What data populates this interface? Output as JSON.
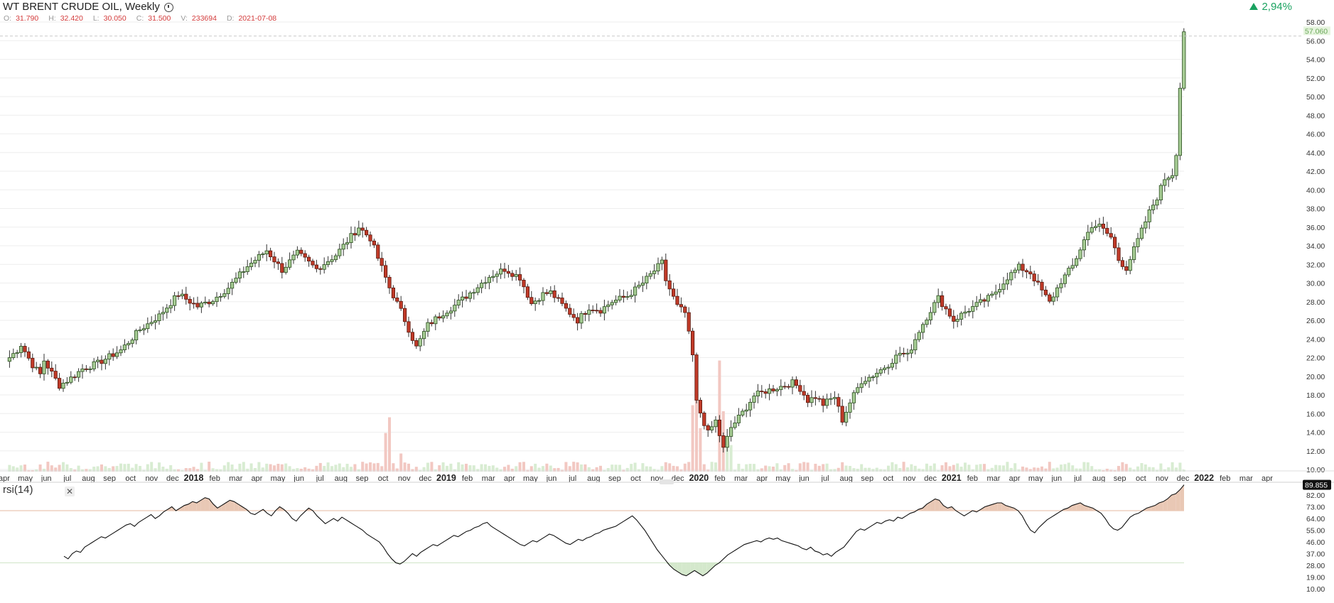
{
  "header": {
    "title": "WT BRENT CRUDE OIL, Weekly",
    "ohlc": [
      {
        "key": "O:",
        "value": "31.790"
      },
      {
        "key": "H:",
        "value": "32.420"
      },
      {
        "key": "L:",
        "value": "30.050"
      },
      {
        "key": "C:",
        "value": "31.500"
      },
      {
        "key": "V:",
        "value": "233694"
      },
      {
        "key": "D:",
        "value": "2021-07-08"
      }
    ],
    "change": "2,94%"
  },
  "colors": {
    "up": "#a6cc94",
    "up_border": "#2b4d1f",
    "down": "#c03a28",
    "down_border": "#5a1a10",
    "vol_up": "#d8ecd2",
    "vol_down": "#f2c8c2",
    "grid": "#eeeeee",
    "axis_text": "#333333",
    "change": "#1aa260"
  },
  "chart_data": [
    {
      "type": "candlestick",
      "title": "WT BRENT CRUDE OIL, Weekly",
      "ylim": [
        9.0,
        58.6
      ],
      "y_ticks": [
        "10.00",
        "12.00",
        "14.00",
        "16.00",
        "18.00",
        "20.00",
        "22.00",
        "24.00",
        "26.00",
        "28.00",
        "30.00",
        "32.00",
        "34.00",
        "36.00",
        "38.00",
        "40.00",
        "42.00",
        "44.00",
        "46.00",
        "48.00",
        "50.00",
        "52.00",
        "54.00",
        "56.00",
        "58.00"
      ],
      "last_price_label": "57.060",
      "x_labels": [
        {
          "t": "apr"
        },
        {
          "t": "may"
        },
        {
          "t": "jun"
        },
        {
          "t": "jul"
        },
        {
          "t": "aug"
        },
        {
          "t": "sep"
        },
        {
          "t": "oct"
        },
        {
          "t": "nov"
        },
        {
          "t": "dec"
        },
        {
          "t": "2018",
          "bold": true
        },
        {
          "t": "feb"
        },
        {
          "t": "mar"
        },
        {
          "t": "apr"
        },
        {
          "t": "may"
        },
        {
          "t": "jun"
        },
        {
          "t": "jul"
        },
        {
          "t": "aug"
        },
        {
          "t": "sep"
        },
        {
          "t": "oct"
        },
        {
          "t": "nov"
        },
        {
          "t": "dec"
        },
        {
          "t": "2019",
          "bold": true
        },
        {
          "t": "feb"
        },
        {
          "t": "mar"
        },
        {
          "t": "apr"
        },
        {
          "t": "may"
        },
        {
          "t": "jun"
        },
        {
          "t": "jul"
        },
        {
          "t": "aug"
        },
        {
          "t": "sep"
        },
        {
          "t": "oct"
        },
        {
          "t": "nov"
        },
        {
          "t": "dec"
        },
        {
          "t": "2020",
          "bold": true
        },
        {
          "t": "feb"
        },
        {
          "t": "mar"
        },
        {
          "t": "apr"
        },
        {
          "t": "may"
        },
        {
          "t": "jun"
        },
        {
          "t": "jul"
        },
        {
          "t": "aug"
        },
        {
          "t": "sep"
        },
        {
          "t": "oct"
        },
        {
          "t": "nov"
        },
        {
          "t": "dec"
        },
        {
          "t": "2021",
          "bold": true
        },
        {
          "t": "feb"
        },
        {
          "t": "mar"
        },
        {
          "t": "apr"
        },
        {
          "t": "may"
        },
        {
          "t": "jun"
        },
        {
          "t": "jul"
        },
        {
          "t": "aug"
        },
        {
          "t": "sep"
        },
        {
          "t": "oct"
        },
        {
          "t": "nov"
        },
        {
          "t": "dec"
        },
        {
          "t": "2022",
          "bold": true
        },
        {
          "t": "feb"
        },
        {
          "t": "mar"
        },
        {
          "t": "apr"
        }
      ],
      "close_anchors": [
        [
          0,
          21.6
        ],
        [
          3,
          22.8
        ],
        [
          4,
          23.4
        ],
        [
          7,
          21.2
        ],
        [
          9,
          20.2
        ],
        [
          10,
          21.7
        ],
        [
          14,
          19.0
        ],
        [
          17,
          19.8
        ],
        [
          20,
          20.8
        ],
        [
          24,
          21.4
        ],
        [
          30,
          22.8
        ],
        [
          35,
          25.0
        ],
        [
          40,
          26.5
        ],
        [
          45,
          28.8
        ],
        [
          50,
          27.5
        ],
        [
          54,
          28.2
        ],
        [
          58,
          29.5
        ],
        [
          63,
          31.8
        ],
        [
          68,
          33.5
        ],
        [
          72,
          31.4
        ],
        [
          76,
          33.2
        ],
        [
          81,
          31.5
        ],
        [
          86,
          33.0
        ],
        [
          92,
          36.0
        ],
        [
          95,
          34.8
        ],
        [
          100,
          29.5
        ],
        [
          103,
          27.0
        ],
        [
          107,
          23.1
        ],
        [
          110,
          25.5
        ],
        [
          114,
          26.8
        ],
        [
          117,
          27.6
        ],
        [
          120,
          28.6
        ],
        [
          126,
          30.7
        ],
        [
          130,
          31.5
        ],
        [
          134,
          30.6
        ],
        [
          137,
          27.8
        ],
        [
          140,
          28.8
        ],
        [
          142,
          29.0
        ],
        [
          146,
          27.2
        ],
        [
          149,
          26.0
        ],
        [
          152,
          27.4
        ],
        [
          155,
          27.1
        ],
        [
          158,
          28.0
        ],
        [
          162,
          28.6
        ],
        [
          166,
          30.0
        ],
        [
          171,
          32.2
        ],
        [
          172,
          30.3
        ],
        [
          175,
          27.5
        ],
        [
          177,
          26.8
        ],
        [
          179,
          22.2
        ],
        [
          180,
          17.2
        ],
        [
          183,
          13.9
        ],
        [
          185,
          15.2
        ],
        [
          187,
          12.2
        ],
        [
          189,
          14.5
        ],
        [
          192,
          16.1
        ],
        [
          195,
          17.9
        ],
        [
          198,
          18.4
        ],
        [
          202,
          18.9
        ],
        [
          205,
          19.3
        ],
        [
          207,
          18.7
        ],
        [
          209,
          17.4
        ],
        [
          211,
          17.8
        ],
        [
          213,
          17.0
        ],
        [
          216,
          17.8
        ],
        [
          218,
          15.3
        ],
        [
          220,
          17.2
        ],
        [
          223,
          19.5
        ],
        [
          226,
          20.1
        ],
        [
          230,
          21.3
        ],
        [
          233,
          22.5
        ],
        [
          235,
          22.2
        ],
        [
          238,
          24.9
        ],
        [
          241,
          27.1
        ],
        [
          243,
          28.4
        ],
        [
          245,
          27.2
        ],
        [
          247,
          26.0
        ],
        [
          250,
          26.9
        ],
        [
          254,
          27.9
        ],
        [
          257,
          28.6
        ],
        [
          261,
          30.6
        ],
        [
          264,
          31.7
        ],
        [
          267,
          31.1
        ],
        [
          269,
          29.8
        ],
        [
          272,
          27.9
        ],
        [
          275,
          30.2
        ],
        [
          278,
          31.8
        ],
        [
          281,
          34.6
        ],
        [
          283,
          36.2
        ],
        [
          285,
          36.1
        ],
        [
          288,
          34.9
        ],
        [
          290,
          32.5
        ],
        [
          292,
          31.6
        ],
        [
          295,
          34.6
        ],
        [
          298,
          37.6
        ],
        [
          300,
          39.2
        ],
        [
          302,
          41.2
        ],
        [
          304,
          41.7
        ],
        [
          305,
          44.0
        ],
        [
          306,
          51.0
        ],
        [
          307,
          57.06
        ]
      ],
      "volume_spikes": [
        {
          "i": 99,
          "v": 0.32
        },
        {
          "i": 100,
          "v": 0.45
        },
        {
          "i": 103,
          "v": 0.15
        },
        {
          "i": 179,
          "v": 0.55
        },
        {
          "i": 180,
          "v": 0.62
        },
        {
          "i": 181,
          "v": 0.36
        },
        {
          "i": 186,
          "v": 0.92
        },
        {
          "i": 187,
          "v": 0.5
        },
        {
          "i": 188,
          "v": 0.3
        },
        {
          "i": 189,
          "v": 0.22
        }
      ]
    },
    {
      "type": "line",
      "title": "rsi(14)",
      "ylim": [
        7.0,
        93.0
      ],
      "y_ticks": [
        "10.00",
        "19.00",
        "28.00",
        "37.00",
        "46.00",
        "55.00",
        "64.00",
        "73.00",
        "82.00"
      ],
      "last_value_label": "89.855",
      "overbought": 70,
      "oversold": 30,
      "values": [
        35,
        33,
        37,
        39,
        38,
        42,
        44,
        46,
        48,
        50,
        49,
        51,
        53,
        55,
        57,
        59,
        60,
        58,
        61,
        63,
        65,
        67,
        64,
        66,
        69,
        71,
        73,
        70,
        72,
        74,
        75,
        77,
        76,
        78,
        80,
        79,
        75,
        72,
        74,
        76,
        78,
        77,
        75,
        73,
        71,
        68,
        67,
        69,
        71,
        68,
        66,
        70,
        73,
        71,
        68,
        64,
        62,
        66,
        69,
        72,
        70,
        66,
        63,
        60,
        62,
        64,
        62,
        65,
        63,
        61,
        59,
        57,
        55,
        52,
        50,
        48,
        46,
        42,
        37,
        33,
        30,
        29,
        31,
        34,
        37,
        35,
        38,
        40,
        42,
        44,
        43,
        45,
        47,
        49,
        51,
        50,
        52,
        54,
        55,
        57,
        58,
        60,
        61,
        58,
        56,
        54,
        52,
        50,
        48,
        46,
        44,
        43,
        45,
        47,
        46,
        48,
        50,
        52,
        51,
        49,
        47,
        45,
        44,
        46,
        48,
        47,
        49,
        50,
        52,
        53,
        55,
        56,
        57,
        58,
        60,
        62,
        64,
        66,
        63,
        59,
        55,
        50,
        45,
        40,
        36,
        32,
        28,
        25,
        23,
        21,
        20,
        22,
        24,
        22,
        20,
        22,
        25,
        28,
        30,
        33,
        36,
        38,
        40,
        42,
        44,
        45,
        46,
        47,
        46,
        48,
        49,
        48,
        49,
        47,
        46,
        45,
        44,
        43,
        41,
        40,
        42,
        39,
        38,
        36,
        37,
        35,
        38,
        40,
        42,
        46,
        50,
        54,
        56,
        55,
        57,
        59,
        61,
        60,
        62,
        63,
        62,
        65,
        64,
        66,
        68,
        69,
        71,
        72,
        75,
        77,
        79,
        78,
        74,
        72,
        73,
        70,
        68,
        66,
        68,
        70,
        69,
        71,
        73,
        74,
        75,
        76,
        76,
        74,
        73,
        72,
        70,
        66,
        60,
        55,
        53,
        57,
        60,
        63,
        65,
        67,
        69,
        71,
        72,
        74,
        75,
        76,
        74,
        73,
        72,
        70,
        68,
        64,
        59,
        56,
        55,
        57,
        61,
        65,
        67,
        68,
        70,
        72,
        73,
        74,
        76,
        77,
        79,
        82,
        83,
        86,
        89.855
      ]
    }
  ]
}
